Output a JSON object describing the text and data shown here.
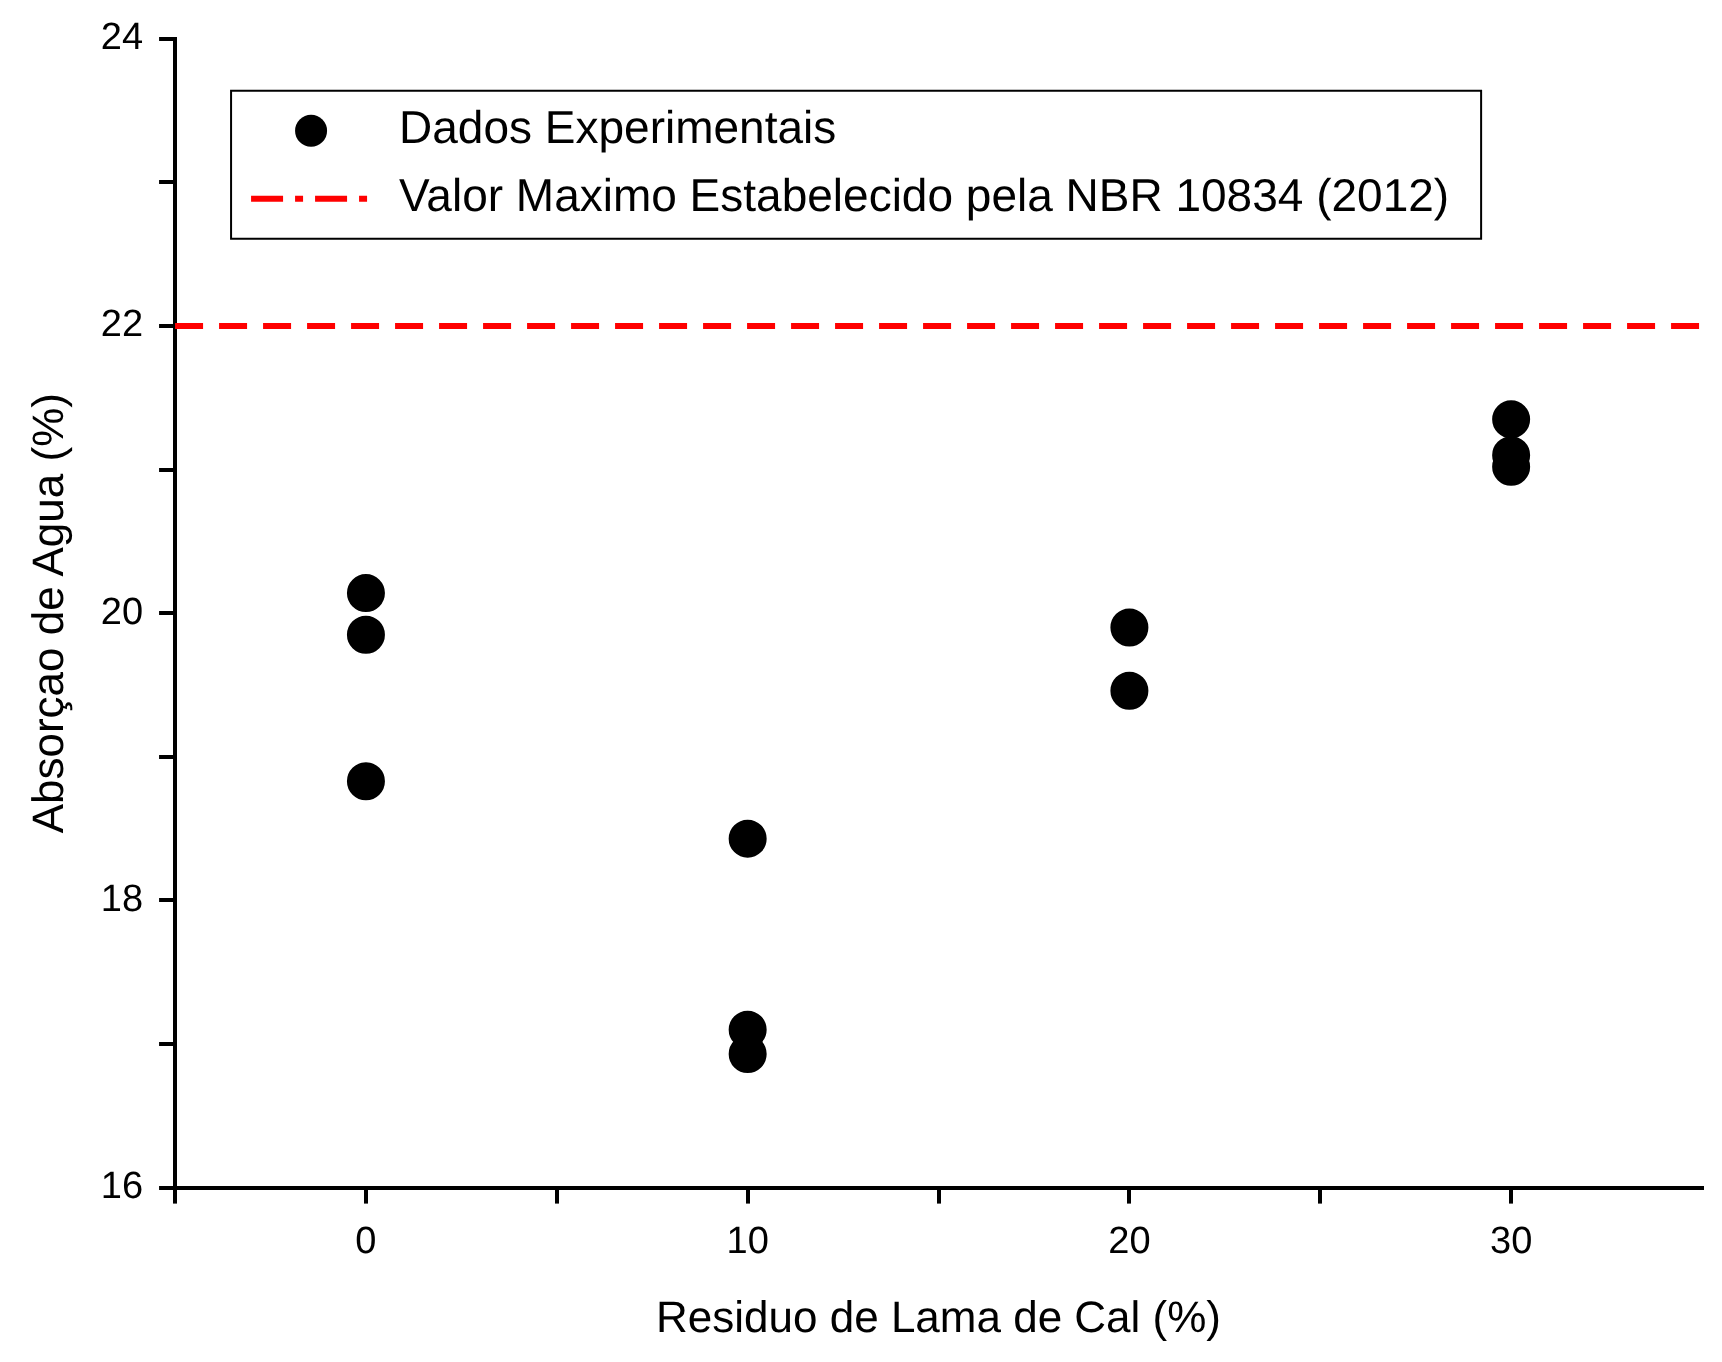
{
  "chart_data": {
    "type": "scatter",
    "xlabel": "Residuo de Lama de Cal (%)",
    "ylabel": "Absorçao de Agua (%)",
    "xlim": [
      -5,
      35
    ],
    "xticks": [
      {
        "value": -5,
        "label": null
      },
      0,
      {
        "value": 5,
        "label": null
      },
      10,
      {
        "value": 15,
        "label": null
      },
      20,
      {
        "value": 25,
        "label": null
      },
      30
    ],
    "ylim": [
      16,
      24
    ],
    "yticks": [
      16,
      {
        "value": 17,
        "label": null
      },
      18,
      {
        "value": 19,
        "label": null
      },
      20,
      {
        "value": 21,
        "label": null
      },
      22,
      {
        "value": 23,
        "label": null
      },
      24
    ],
    "series": [
      {
        "name": "Dados Experimentais",
        "color": "#000000",
        "x": [
          0,
          0,
          0,
          10,
          10,
          10,
          20,
          20,
          30,
          30,
          30
        ],
        "values": [
          20.14,
          19.85,
          18.83,
          18.43,
          17.1,
          16.93,
          19.9,
          19.46,
          21.35,
          21.1,
          21.02
        ]
      }
    ],
    "ref_lines": [
      {
        "axis": "y",
        "value": 22,
        "label": "Valor Maximo Estabelecido pela NBR 10834 (2012)",
        "color": "#ff0000",
        "line_style": "dashed"
      }
    ],
    "marker": "circle",
    "legend": "top"
  }
}
